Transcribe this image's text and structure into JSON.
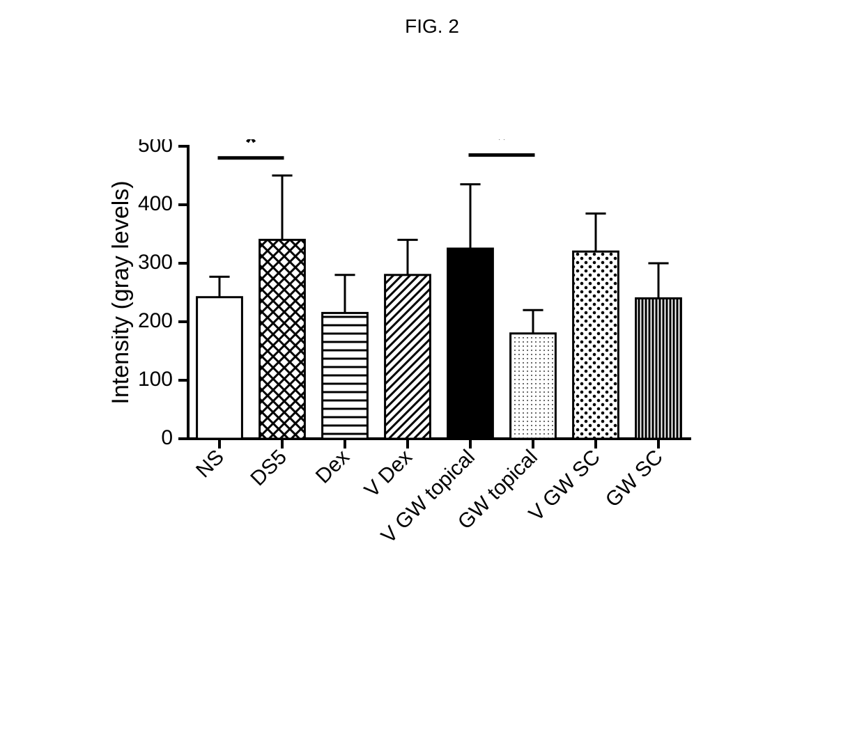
{
  "title": "FIG. 2",
  "chart": {
    "type": "bar",
    "ylabel": "Intensity (gray levels)",
    "ylim": [
      0,
      500
    ],
    "ytick_step": 100,
    "yticks": [
      0,
      100,
      200,
      300,
      400,
      500
    ],
    "categories": [
      "NS",
      "DS5",
      "Dex",
      "V Dex",
      "V GW topical",
      "GW topical",
      "V GW SC",
      "GW SC"
    ],
    "values": [
      242,
      340,
      215,
      280,
      325,
      180,
      320,
      240
    ],
    "errors": [
      35,
      110,
      65,
      60,
      110,
      40,
      65,
      60
    ],
    "bar_fill_patterns": [
      "none",
      "crosshatch",
      "horiz",
      "diag-nwse",
      "solid",
      "dots-fine",
      "dots-coarse",
      "vstripes"
    ],
    "bar_colors": {
      "stroke": "#000000",
      "solid_fill": "#000000",
      "pattern_fg": "#000000",
      "background": "#ffffff"
    },
    "axis_stroke_width": 4,
    "bar_stroke_width": 3,
    "error_stroke_width": 3,
    "tick_length": 14,
    "bar_width_ratio": 0.72,
    "title_fontsize": 28,
    "label_fontsize": 34,
    "tick_fontsize": 30,
    "category_fontsize": 30,
    "sig_fontsize": 44,
    "significance": [
      {
        "from": 0,
        "to": 1,
        "label": "*",
        "y": 480
      },
      {
        "from": 4,
        "to": 5,
        "label": "*",
        "y": 485
      }
    ]
  }
}
